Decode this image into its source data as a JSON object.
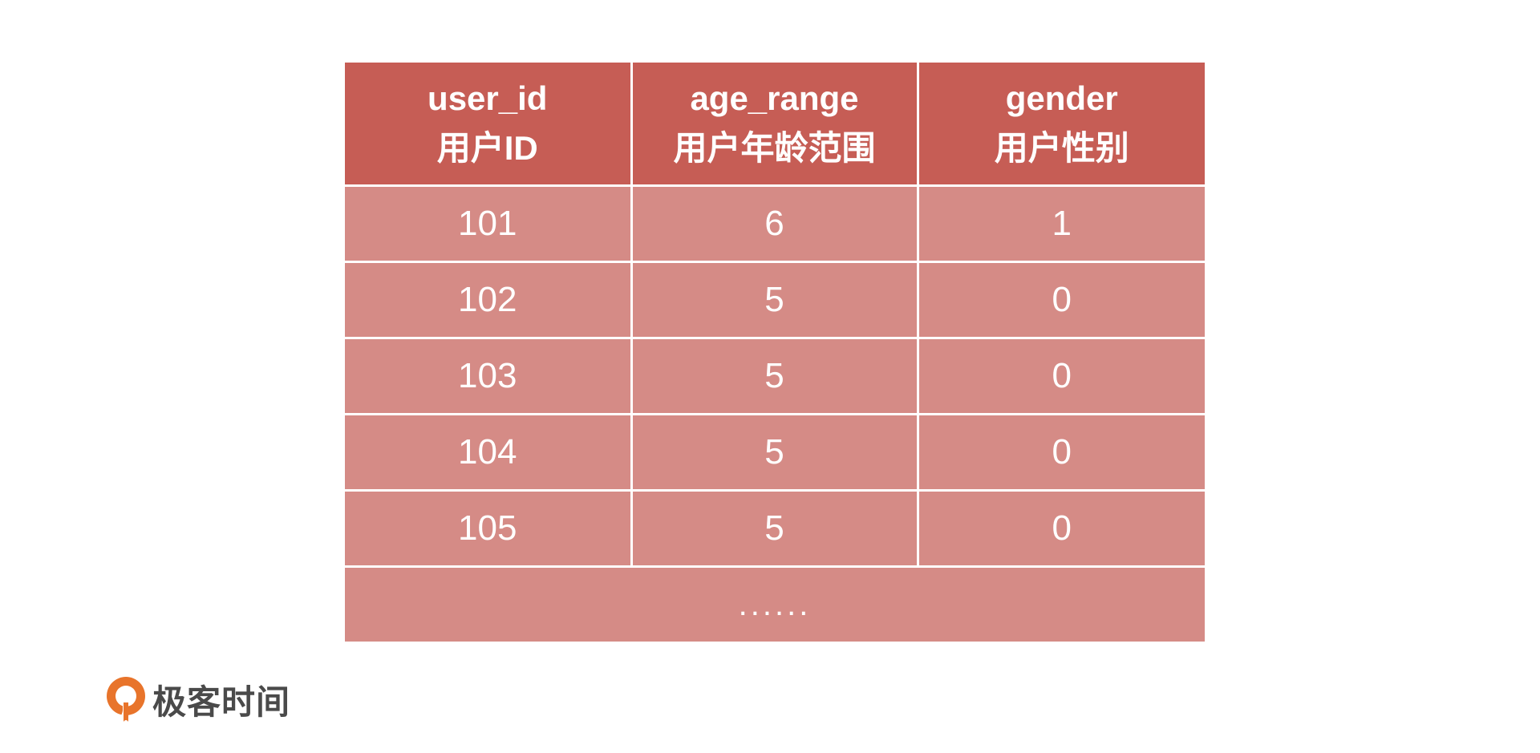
{
  "table": {
    "headers": [
      {
        "en": "user_id",
        "zh": "用户ID"
      },
      {
        "en": "age_range",
        "zh": "用户年龄范围"
      },
      {
        "en": "gender",
        "zh": "用户性别"
      }
    ],
    "rows": [
      [
        "101",
        "6",
        "1"
      ],
      [
        "102",
        "5",
        "0"
      ],
      [
        "103",
        "5",
        "0"
      ],
      [
        "104",
        "5",
        "0"
      ],
      [
        "105",
        "5",
        "0"
      ]
    ],
    "ellipsis": "......"
  },
  "brand": {
    "name": "极客时间",
    "logo_icon": "geektime-logo-icon",
    "logo_color": "#e8742b"
  },
  "colors": {
    "header_bg": "#c65d55",
    "row_bg": "#d58b86",
    "text": "#ffffff"
  }
}
